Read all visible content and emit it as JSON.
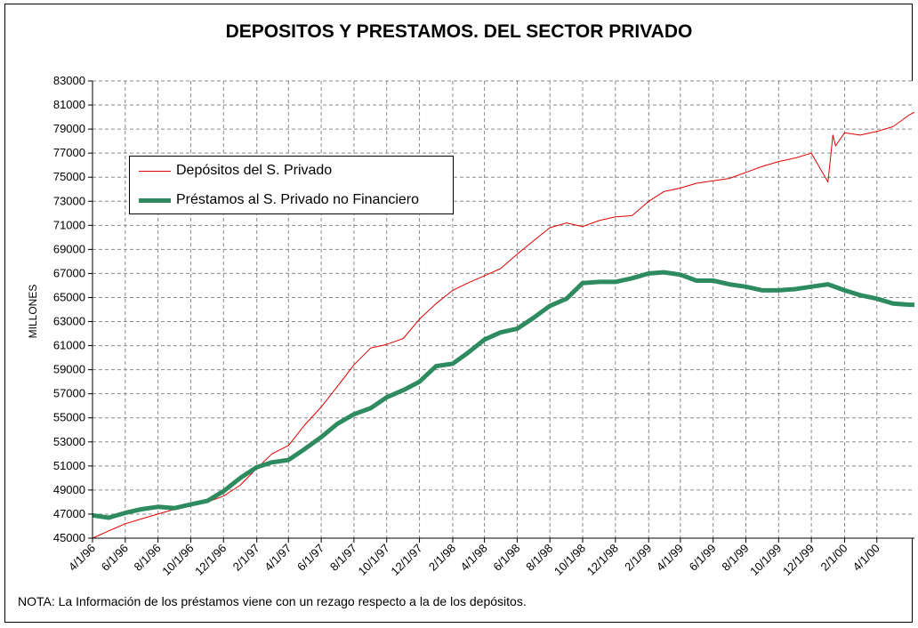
{
  "chart_data": {
    "type": "line",
    "title": "DEPOSITOS Y PRESTAMOS. DEL SECTOR PRIVADO",
    "ylabel": "MILLONES",
    "xlabel": "",
    "ylim": [
      45000,
      83000
    ],
    "yticks": [
      "83000",
      "81000",
      "79000",
      "77000",
      "75000",
      "73000",
      "71000",
      "69000",
      "67000",
      "65000",
      "63000",
      "61000",
      "59000",
      "57000",
      "55000",
      "53000",
      "51000",
      "49000",
      "47000",
      "45000"
    ],
    "xlim": [
      "1996-04-01",
      "2000-06-10"
    ],
    "xticks": [
      "4/1/96",
      "6/1/96",
      "8/1/96",
      "10/1/96",
      "12/1/96",
      "2/1/97",
      "4/1/97",
      "6/1/97",
      "8/1/97",
      "10/1/97",
      "12/1/97",
      "2/1/98",
      "4/1/98",
      "6/1/98",
      "8/1/98",
      "10/1/98",
      "12/1/98",
      "2/1/99",
      "4/1/99",
      "6/1/99",
      "8/1/99",
      "10/1/99",
      "12/1/99",
      "2/1/00",
      "4/1/00"
    ],
    "grid": true,
    "legend_position": "upper-left",
    "series": [
      {
        "name": "Depósitos del S. Privado",
        "color": "#e00000",
        "x": [
          "1996-04-01",
          "1996-05-01",
          "1996-06-01",
          "1996-07-01",
          "1996-08-01",
          "1996-09-01",
          "1996-10-01",
          "1996-11-01",
          "1996-12-01",
          "1997-01-01",
          "1997-02-01",
          "1997-03-01",
          "1997-04-01",
          "1997-05-01",
          "1997-06-01",
          "1997-07-01",
          "1997-08-01",
          "1997-09-01",
          "1997-10-01",
          "1997-11-01",
          "1997-12-01",
          "1998-01-01",
          "1998-02-01",
          "1998-03-01",
          "1998-04-01",
          "1998-05-01",
          "1998-06-01",
          "1998-07-01",
          "1998-08-01",
          "1998-09-01",
          "1998-10-01",
          "1998-11-01",
          "1998-12-01",
          "1999-01-01",
          "1999-02-01",
          "1999-03-01",
          "1999-04-01",
          "1999-05-01",
          "1999-06-01",
          "1999-07-01",
          "1999-08-01",
          "1999-09-01",
          "1999-10-01",
          "1999-11-01",
          "1999-12-01",
          "2000-01-01",
          "2000-01-10",
          "2000-01-15",
          "2000-02-01",
          "2000-03-01",
          "2000-04-01",
          "2000-05-01",
          "2000-06-01",
          "2000-06-10"
        ],
        "values": [
          45000,
          45600,
          46200,
          46600,
          47000,
          47400,
          47700,
          48000,
          48500,
          49400,
          50800,
          52000,
          52700,
          54400,
          55900,
          57600,
          59400,
          60800,
          61100,
          61600,
          63200,
          64500,
          65600,
          66200,
          66800,
          67400,
          68600,
          69700,
          70800,
          71200,
          70900,
          71400,
          71700,
          71800,
          73000,
          73800,
          74100,
          74500,
          74700,
          74900,
          75400,
          75900,
          76300,
          76600,
          77000,
          74600,
          78500,
          77600,
          78700,
          78500,
          78800,
          79200,
          80200,
          80400
        ]
      },
      {
        "name": "Préstamos al S. Privado no Financiero",
        "color": "#2e8b60",
        "x": [
          "1996-04-01",
          "1996-05-01",
          "1996-06-01",
          "1996-07-01",
          "1996-08-01",
          "1996-09-01",
          "1996-10-01",
          "1996-11-01",
          "1996-12-01",
          "1997-01-01",
          "1997-02-01",
          "1997-03-01",
          "1997-04-01",
          "1997-05-01",
          "1997-06-01",
          "1997-07-01",
          "1997-08-01",
          "1997-09-01",
          "1997-10-01",
          "1997-11-01",
          "1997-12-01",
          "1998-01-01",
          "1998-02-01",
          "1998-03-01",
          "1998-04-01",
          "1998-05-01",
          "1998-06-01",
          "1998-07-01",
          "1998-08-01",
          "1998-09-01",
          "1998-10-01",
          "1998-11-01",
          "1998-12-01",
          "1999-01-01",
          "1999-02-01",
          "1999-03-01",
          "1999-04-01",
          "1999-05-01",
          "1999-06-01",
          "1999-07-01",
          "1999-08-01",
          "1999-09-01",
          "1999-10-01",
          "1999-11-01",
          "1999-12-01",
          "2000-01-01",
          "2000-02-01",
          "2000-03-01",
          "2000-04-01",
          "2000-05-01",
          "2000-06-01",
          "2000-06-10"
        ],
        "values": [
          46900,
          46700,
          47100,
          47400,
          47600,
          47500,
          47800,
          48100,
          48900,
          50000,
          50900,
          51300,
          51500,
          52400,
          53400,
          54500,
          55300,
          55800,
          56700,
          57300,
          58000,
          59300,
          59500,
          60400,
          61500,
          62100,
          62400,
          63300,
          64300,
          64900,
          66200,
          66300,
          66300,
          66600,
          67000,
          67100,
          66900,
          66400,
          66400,
          66100,
          65900,
          65600,
          65600,
          65700,
          65900,
          66100,
          65600,
          65200,
          64900,
          64500,
          64400,
          64400
        ]
      }
    ]
  },
  "footnote": "NOTA: La Información de los préstamos viene con un rezago respecto a la de los depósitos."
}
